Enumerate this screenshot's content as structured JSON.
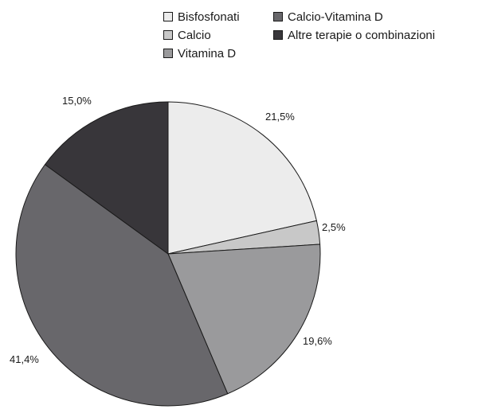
{
  "chart_data": {
    "type": "pie",
    "title": "",
    "legend_position": "top-right",
    "categories": [
      "Bisfosfonati",
      "Calcio",
      "Vitamina D",
      "Calcio-Vitamina D",
      "Altre terapie o combinazioni"
    ],
    "values": [
      21.5,
      2.5,
      19.6,
      41.4,
      15.0
    ],
    "value_labels": [
      "21,5%",
      "2,5%",
      "19,6%",
      "41,4%",
      "15,0%"
    ],
    "colors": [
      "#ececec",
      "#c8c8c8",
      "#9a9a9c",
      "#68676b",
      "#38363a"
    ],
    "start_angle": "12 o'clock",
    "direction": "clockwise"
  }
}
